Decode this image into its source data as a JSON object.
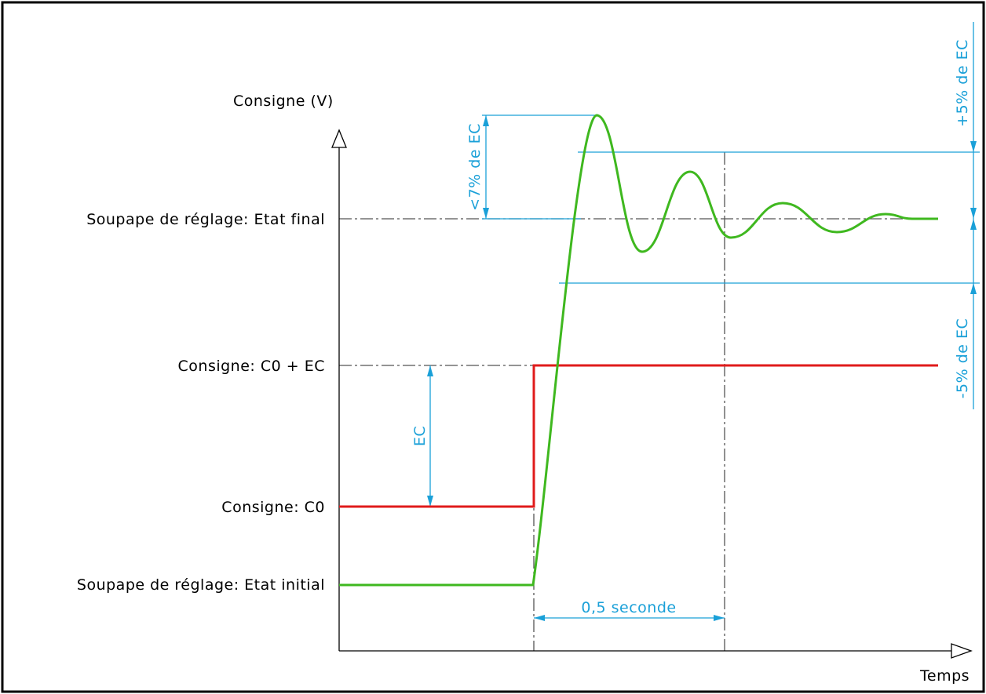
{
  "colors": {
    "frame": "#000000",
    "axis": "#000000",
    "setpoint_line": "#e01b1b",
    "valve_response": "#3fb81f",
    "dimension": "#1aa0d8",
    "center_line": "#555555"
  },
  "axes": {
    "y_title": "Consigne (V)",
    "x_title": "Temps"
  },
  "levels": {
    "valve_final": "Soupape de réglage: Etat final",
    "setpoint_high": "Consigne: C0 + EC",
    "setpoint_low": "Consigne: C0",
    "valve_initial": "Soupape de réglage: Etat initial"
  },
  "dimensions": {
    "overshoot": "<7% de EC",
    "plus_band": "+5% de EC",
    "minus_band": "-5% de EC",
    "step": "EC",
    "settling_time": "0,5 seconde"
  },
  "icons": {
    "y_arrow": "open-triangle-arrow-up",
    "x_arrow": "open-triangle-arrow-right",
    "dim_arrows": "filled-arrowheads"
  }
}
